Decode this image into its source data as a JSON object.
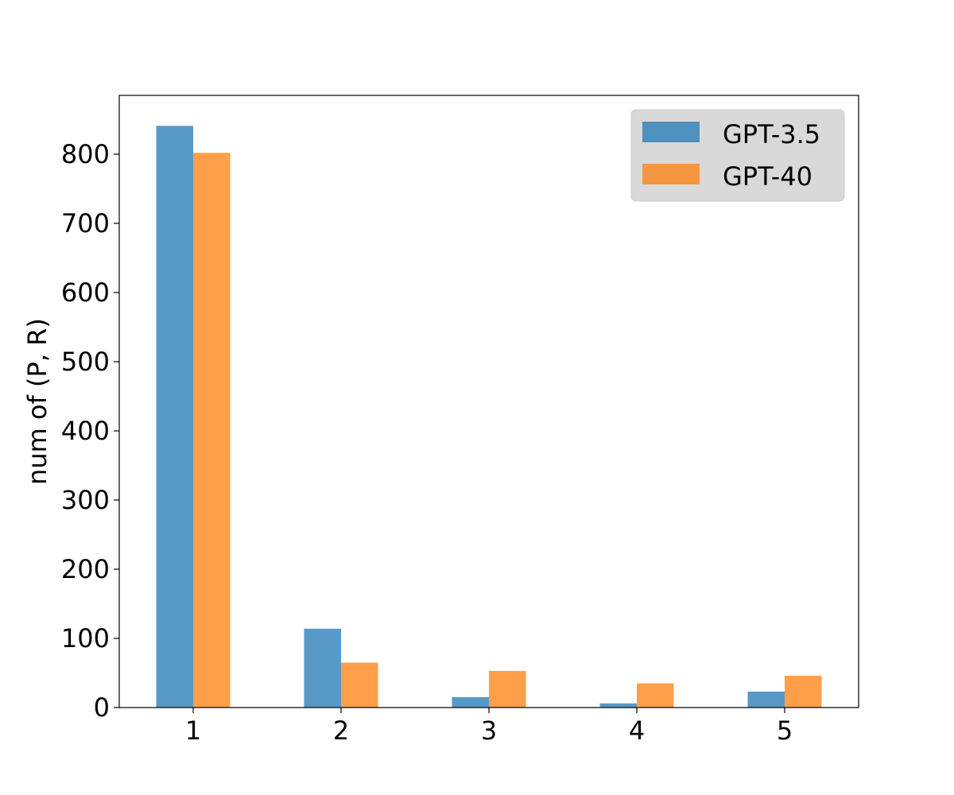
{
  "chart_data": {
    "type": "bar",
    "title": "",
    "xlabel": "",
    "ylabel": "num of (P, R)",
    "categories": [
      "1",
      "2",
      "3",
      "4",
      "5"
    ],
    "series": [
      {
        "name": "GPT-3.5",
        "color": "#1f77b4",
        "values": [
          841,
          114,
          15,
          6,
          23
        ]
      },
      {
        "name": "GPT-40",
        "color": "#ff7f0e",
        "values": [
          802,
          65,
          53,
          35,
          46
        ]
      }
    ],
    "ylim": [
      0,
      885
    ],
    "yticks": [
      0,
      100,
      200,
      300,
      400,
      500,
      600,
      700,
      800
    ],
    "grid": false,
    "legend_position": "top-right",
    "bar_opacity": 0.75
  }
}
